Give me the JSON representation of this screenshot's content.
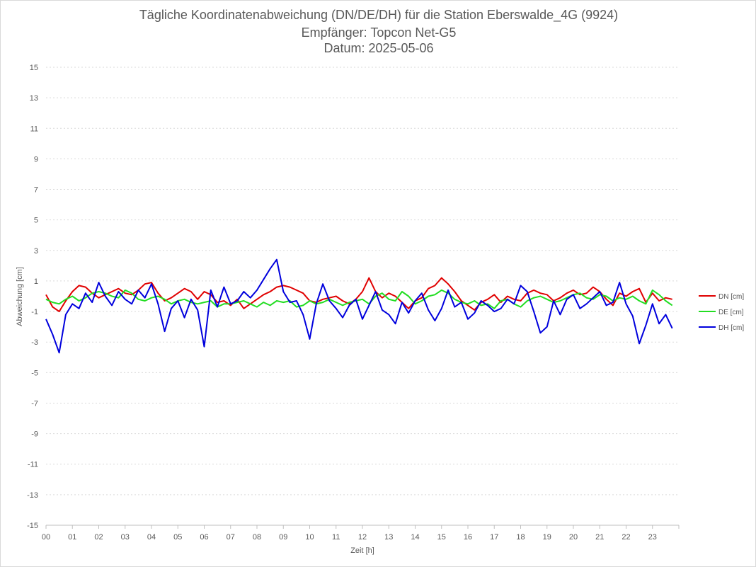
{
  "chart_data": {
    "type": "line",
    "title_lines": [
      "Tägliche Koordinatenabweichung (DN/DE/DH) für die Station Eberswalde_4G (9924)",
      "Empfänger: Topcon Net-G5",
      "Datum: 2025-05-06"
    ],
    "xlabel": "Zeit [h]",
    "ylabel": "Abweichung [cm]",
    "xlim": [
      0,
      24
    ],
    "ylim": [
      -15,
      15
    ],
    "x_tick_labels": [
      "00",
      "01",
      "02",
      "03",
      "04",
      "05",
      "06",
      "07",
      "08",
      "09",
      "10",
      "11",
      "12",
      "13",
      "14",
      "15",
      "16",
      "17",
      "18",
      "19",
      "20",
      "21",
      "22",
      "23"
    ],
    "y_ticks": [
      15,
      13,
      11,
      9,
      7,
      5,
      3,
      1,
      -1,
      -3,
      -5,
      -7,
      -9,
      -11,
      -13,
      -15
    ],
    "grid": "horizontal dotted",
    "legend_position": "right",
    "x": [
      0,
      0.25,
      0.5,
      0.75,
      1,
      1.25,
      1.5,
      1.75,
      2,
      2.25,
      2.5,
      2.75,
      3,
      3.25,
      3.5,
      3.75,
      4,
      4.25,
      4.5,
      4.75,
      5,
      5.25,
      5.5,
      5.75,
      6,
      6.25,
      6.5,
      6.75,
      7,
      7.25,
      7.5,
      7.75,
      8,
      8.25,
      8.5,
      8.75,
      9,
      9.25,
      9.5,
      9.75,
      10,
      10.25,
      10.5,
      10.75,
      11,
      11.25,
      11.5,
      11.75,
      12,
      12.25,
      12.5,
      12.75,
      13,
      13.25,
      13.5,
      13.75,
      14,
      14.25,
      14.5,
      14.75,
      15,
      15.25,
      15.5,
      15.75,
      16,
      16.25,
      16.5,
      16.75,
      17,
      17.25,
      17.5,
      17.75,
      18,
      18.25,
      18.5,
      18.75,
      19,
      19.25,
      19.5,
      19.75,
      20,
      20.25,
      20.5,
      20.75,
      21,
      21.25,
      21.5,
      21.75,
      22,
      22.25,
      22.5,
      22.75,
      23,
      23.25,
      23.5,
      23.75
    ],
    "series": [
      {
        "name": "DN [cm]",
        "color": "#e00000",
        "values": [
          0.1,
          -0.7,
          -1.0,
          -0.3,
          0.3,
          0.7,
          0.6,
          0.2,
          -0.1,
          0.1,
          0.3,
          0.5,
          0.2,
          0.1,
          0.4,
          0.8,
          0.9,
          0.2,
          -0.3,
          -0.1,
          0.2,
          0.5,
          0.3,
          -0.2,
          0.3,
          0.1,
          -0.4,
          -0.3,
          -0.6,
          -0.2,
          -0.8,
          -0.5,
          -0.2,
          0.1,
          0.3,
          0.6,
          0.7,
          0.6,
          0.4,
          0.2,
          -0.3,
          -0.4,
          -0.2,
          -0.1,
          0.0,
          -0.3,
          -0.5,
          -0.2,
          0.3,
          1.2,
          0.3,
          -0.1,
          0.2,
          0.0,
          -0.4,
          -0.8,
          -0.3,
          -0.1,
          0.5,
          0.7,
          1.2,
          0.8,
          0.3,
          -0.3,
          -0.6,
          -0.9,
          -0.4,
          -0.2,
          0.1,
          -0.4,
          0.0,
          -0.2,
          -0.3,
          0.2,
          0.4,
          0.2,
          0.1,
          -0.3,
          -0.1,
          0.2,
          0.4,
          0.1,
          0.2,
          0.6,
          0.3,
          -0.2,
          -0.6,
          0.2,
          0.0,
          0.3,
          0.5,
          -0.4,
          0.2,
          -0.3,
          -0.1,
          -0.2
        ]
      },
      {
        "name": "DE [cm]",
        "color": "#22dd22",
        "values": [
          -0.2,
          -0.4,
          -0.5,
          -0.2,
          0.0,
          -0.3,
          -0.1,
          0.2,
          0.3,
          0.2,
          0.0,
          -0.1,
          0.4,
          0.2,
          -0.2,
          -0.3,
          -0.1,
          0.0,
          -0.2,
          -0.5,
          -0.3,
          -0.2,
          -0.4,
          -0.5,
          -0.4,
          -0.3,
          -0.7,
          -0.5,
          -0.5,
          -0.4,
          -0.3,
          -0.5,
          -0.7,
          -0.4,
          -0.6,
          -0.3,
          -0.4,
          -0.3,
          -0.7,
          -0.6,
          -0.3,
          -0.5,
          -0.4,
          -0.2,
          -0.4,
          -0.6,
          -0.4,
          -0.3,
          -0.2,
          -0.5,
          0.0,
          0.2,
          -0.2,
          -0.3,
          0.3,
          0.0,
          -0.5,
          -0.3,
          0.0,
          0.1,
          0.4,
          0.2,
          -0.2,
          -0.4,
          -0.5,
          -0.3,
          -0.6,
          -0.5,
          -0.8,
          -0.3,
          -0.2,
          -0.5,
          -0.7,
          -0.3,
          -0.1,
          0.0,
          -0.2,
          -0.4,
          -0.3,
          -0.1,
          0.1,
          0.2,
          -0.1,
          -0.2,
          0.1,
          0.0,
          -0.3,
          -0.1,
          -0.2,
          0.0,
          -0.3,
          -0.5,
          0.4,
          0.1,
          -0.3,
          -0.6
        ]
      },
      {
        "name": "DH [cm]",
        "color": "#0000dd",
        "values": [
          -1.5,
          -2.5,
          -3.7,
          -1.2,
          -0.5,
          -0.8,
          0.2,
          -0.4,
          0.9,
          0.0,
          -0.6,
          0.3,
          -0.2,
          -0.5,
          0.4,
          -0.1,
          0.8,
          -0.5,
          -2.3,
          -0.8,
          -0.3,
          -1.4,
          -0.2,
          -0.9,
          -3.3,
          0.4,
          -0.7,
          0.6,
          -0.5,
          -0.3,
          0.3,
          -0.1,
          0.4,
          1.1,
          1.8,
          2.4,
          0.3,
          -0.4,
          -0.3,
          -1.2,
          -2.8,
          -0.5,
          0.8,
          -0.3,
          -0.8,
          -1.4,
          -0.6,
          -0.2,
          -1.5,
          -0.6,
          0.3,
          -0.9,
          -1.2,
          -1.8,
          -0.4,
          -1.1,
          -0.3,
          0.2,
          -0.9,
          -1.6,
          -0.8,
          0.4,
          -0.7,
          -0.4,
          -1.5,
          -1.1,
          -0.3,
          -0.6,
          -1.0,
          -0.8,
          -0.2,
          -0.5,
          0.7,
          0.3,
          -1.0,
          -2.4,
          -2.0,
          -0.3,
          -1.2,
          -0.2,
          0.1,
          -0.8,
          -0.5,
          -0.1,
          0.3,
          -0.6,
          -0.4,
          0.9,
          -0.5,
          -1.3,
          -3.1,
          -1.9,
          -0.5,
          -1.8,
          -1.2,
          -2.1
        ]
      }
    ]
  }
}
